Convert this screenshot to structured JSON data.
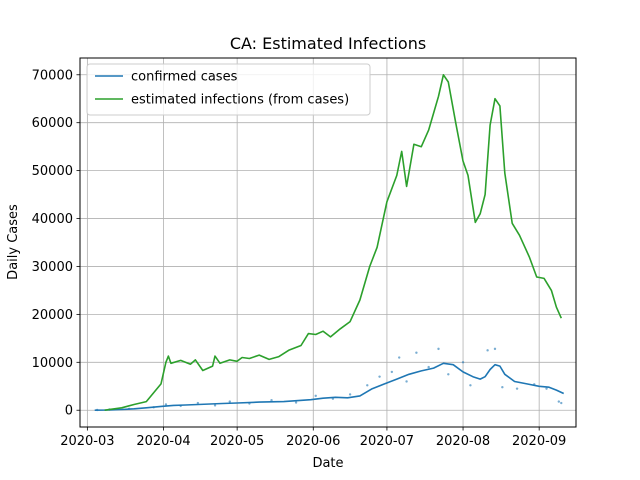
{
  "chart_data": {
    "type": "line",
    "title": "CA: Estimated Infections",
    "xlabel": "Date",
    "ylabel": "Daily Cases",
    "x_range": [
      "2020-02-27",
      "2020-09-16"
    ],
    "ylim": [
      -3500,
      73500
    ],
    "grid": true,
    "legend_position": "upper left",
    "x_ticks": [
      "2020-03",
      "2020-04",
      "2020-05",
      "2020-06",
      "2020-07",
      "2020-08",
      "2020-09"
    ],
    "x_tick_dates": [
      "2020-03-01",
      "2020-04-01",
      "2020-05-01",
      "2020-06-01",
      "2020-07-01",
      "2020-08-01",
      "2020-09-01"
    ],
    "y_ticks": [
      0,
      10000,
      20000,
      30000,
      40000,
      50000,
      60000,
      70000
    ],
    "series": [
      {
        "name": "confirmed cases",
        "color": "#1f77b4",
        "points": [
          [
            "2020-03-04",
            0
          ],
          [
            "2020-03-10",
            50
          ],
          [
            "2020-03-15",
            150
          ],
          [
            "2020-03-20",
            300
          ],
          [
            "2020-03-25",
            500
          ],
          [
            "2020-03-31",
            800
          ],
          [
            "2020-04-05",
            1000
          ],
          [
            "2020-04-10",
            1100
          ],
          [
            "2020-04-15",
            1200
          ],
          [
            "2020-04-20",
            1300
          ],
          [
            "2020-04-25",
            1400
          ],
          [
            "2020-05-01",
            1500
          ],
          [
            "2020-05-10",
            1700
          ],
          [
            "2020-05-20",
            1800
          ],
          [
            "2020-05-31",
            2200
          ],
          [
            "2020-06-05",
            2500
          ],
          [
            "2020-06-10",
            2700
          ],
          [
            "2020-06-15",
            2600
          ],
          [
            "2020-06-20",
            3000
          ],
          [
            "2020-06-25",
            4500
          ],
          [
            "2020-06-30",
            5500
          ],
          [
            "2020-07-05",
            6500
          ],
          [
            "2020-07-10",
            7500
          ],
          [
            "2020-07-15",
            8200
          ],
          [
            "2020-07-20",
            8800
          ],
          [
            "2020-07-24",
            9800
          ],
          [
            "2020-07-28",
            9500
          ],
          [
            "2020-08-01",
            8000
          ],
          [
            "2020-08-05",
            7000
          ],
          [
            "2020-08-08",
            6500
          ],
          [
            "2020-08-10",
            7000
          ],
          [
            "2020-08-12",
            8500
          ],
          [
            "2020-08-14",
            9500
          ],
          [
            "2020-08-16",
            9200
          ],
          [
            "2020-08-18",
            7500
          ],
          [
            "2020-08-22",
            6000
          ],
          [
            "2020-08-27",
            5500
          ],
          [
            "2020-09-01",
            5000
          ],
          [
            "2020-09-05",
            4800
          ],
          [
            "2020-09-08",
            4200
          ],
          [
            "2020-09-11",
            3500
          ]
        ]
      },
      {
        "name": "estimated infections (from cases)",
        "color": "#2ca02c",
        "points": [
          [
            "2020-03-08",
            0
          ],
          [
            "2020-03-15",
            500
          ],
          [
            "2020-03-20",
            1200
          ],
          [
            "2020-03-25",
            1800
          ],
          [
            "2020-03-31",
            5500
          ],
          [
            "2020-04-02",
            10000
          ],
          [
            "2020-04-03",
            11300
          ],
          [
            "2020-04-04",
            9800
          ],
          [
            "2020-04-08",
            10400
          ],
          [
            "2020-04-12",
            9600
          ],
          [
            "2020-04-14",
            10500
          ],
          [
            "2020-04-17",
            8300
          ],
          [
            "2020-04-21",
            9200
          ],
          [
            "2020-04-22",
            11300
          ],
          [
            "2020-04-24",
            9800
          ],
          [
            "2020-04-28",
            10500
          ],
          [
            "2020-05-01",
            10200
          ],
          [
            "2020-05-03",
            11000
          ],
          [
            "2020-05-06",
            10800
          ],
          [
            "2020-05-10",
            11500
          ],
          [
            "2020-05-14",
            10600
          ],
          [
            "2020-05-18",
            11200
          ],
          [
            "2020-05-22",
            12500
          ],
          [
            "2020-05-27",
            13500
          ],
          [
            "2020-05-30",
            16000
          ],
          [
            "2020-06-02",
            15800
          ],
          [
            "2020-06-05",
            16500
          ],
          [
            "2020-06-08",
            15300
          ],
          [
            "2020-06-12",
            17000
          ],
          [
            "2020-06-16",
            18500
          ],
          [
            "2020-06-20",
            23000
          ],
          [
            "2020-06-24",
            30000
          ],
          [
            "2020-06-27",
            34000
          ],
          [
            "2020-07-01",
            43500
          ],
          [
            "2020-07-05",
            49000
          ],
          [
            "2020-07-07",
            54000
          ],
          [
            "2020-07-09",
            46700
          ],
          [
            "2020-07-12",
            55500
          ],
          [
            "2020-07-15",
            55000
          ],
          [
            "2020-07-18",
            58500
          ],
          [
            "2020-07-20",
            62000
          ],
          [
            "2020-07-22",
            65500
          ],
          [
            "2020-07-24",
            70000
          ],
          [
            "2020-07-26",
            68500
          ],
          [
            "2020-07-29",
            60000
          ],
          [
            "2020-08-01",
            52000
          ],
          [
            "2020-08-03",
            49000
          ],
          [
            "2020-08-06",
            39200
          ],
          [
            "2020-08-08",
            41000
          ],
          [
            "2020-08-10",
            45000
          ],
          [
            "2020-08-12",
            59500
          ],
          [
            "2020-08-14",
            65000
          ],
          [
            "2020-08-16",
            63500
          ],
          [
            "2020-08-18",
            49500
          ],
          [
            "2020-08-21",
            39000
          ],
          [
            "2020-08-24",
            36500
          ],
          [
            "2020-08-28",
            32000
          ],
          [
            "2020-08-31",
            27800
          ],
          [
            "2020-09-03",
            27500
          ],
          [
            "2020-09-06",
            25000
          ],
          [
            "2020-09-08",
            21500
          ],
          [
            "2020-09-10",
            19200
          ]
        ]
      }
    ],
    "scatter": {
      "color": "#1f77b4",
      "points": [
        [
          "2020-03-05",
          50
        ],
        [
          "2020-03-10",
          150
        ],
        [
          "2020-03-18",
          300
        ],
        [
          "2020-03-28",
          600
        ],
        [
          "2020-04-02",
          1200
        ],
        [
          "2020-04-08",
          900
        ],
        [
          "2020-04-15",
          1500
        ],
        [
          "2020-04-22",
          1000
        ],
        [
          "2020-04-28",
          1800
        ],
        [
          "2020-05-06",
          1400
        ],
        [
          "2020-05-15",
          2100
        ],
        [
          "2020-05-25",
          1600
        ],
        [
          "2020-06-02",
          3000
        ],
        [
          "2020-06-09",
          2400
        ],
        [
          "2020-06-16",
          3300
        ],
        [
          "2020-06-23",
          5200
        ],
        [
          "2020-06-28",
          7000
        ],
        [
          "2020-07-03",
          8000
        ],
        [
          "2020-07-06",
          11000
        ],
        [
          "2020-07-09",
          6000
        ],
        [
          "2020-07-13",
          12000
        ],
        [
          "2020-07-18",
          9000
        ],
        [
          "2020-07-22",
          12800
        ],
        [
          "2020-07-26",
          7500
        ],
        [
          "2020-08-01",
          10000
        ],
        [
          "2020-08-04",
          5200
        ],
        [
          "2020-08-11",
          12500
        ],
        [
          "2020-08-14",
          12800
        ],
        [
          "2020-08-17",
          4800
        ],
        [
          "2020-08-23",
          4500
        ],
        [
          "2020-08-30",
          5400
        ],
        [
          "2020-09-04",
          4500
        ],
        [
          "2020-09-09",
          1800
        ],
        [
          "2020-09-10",
          1500
        ]
      ]
    }
  }
}
